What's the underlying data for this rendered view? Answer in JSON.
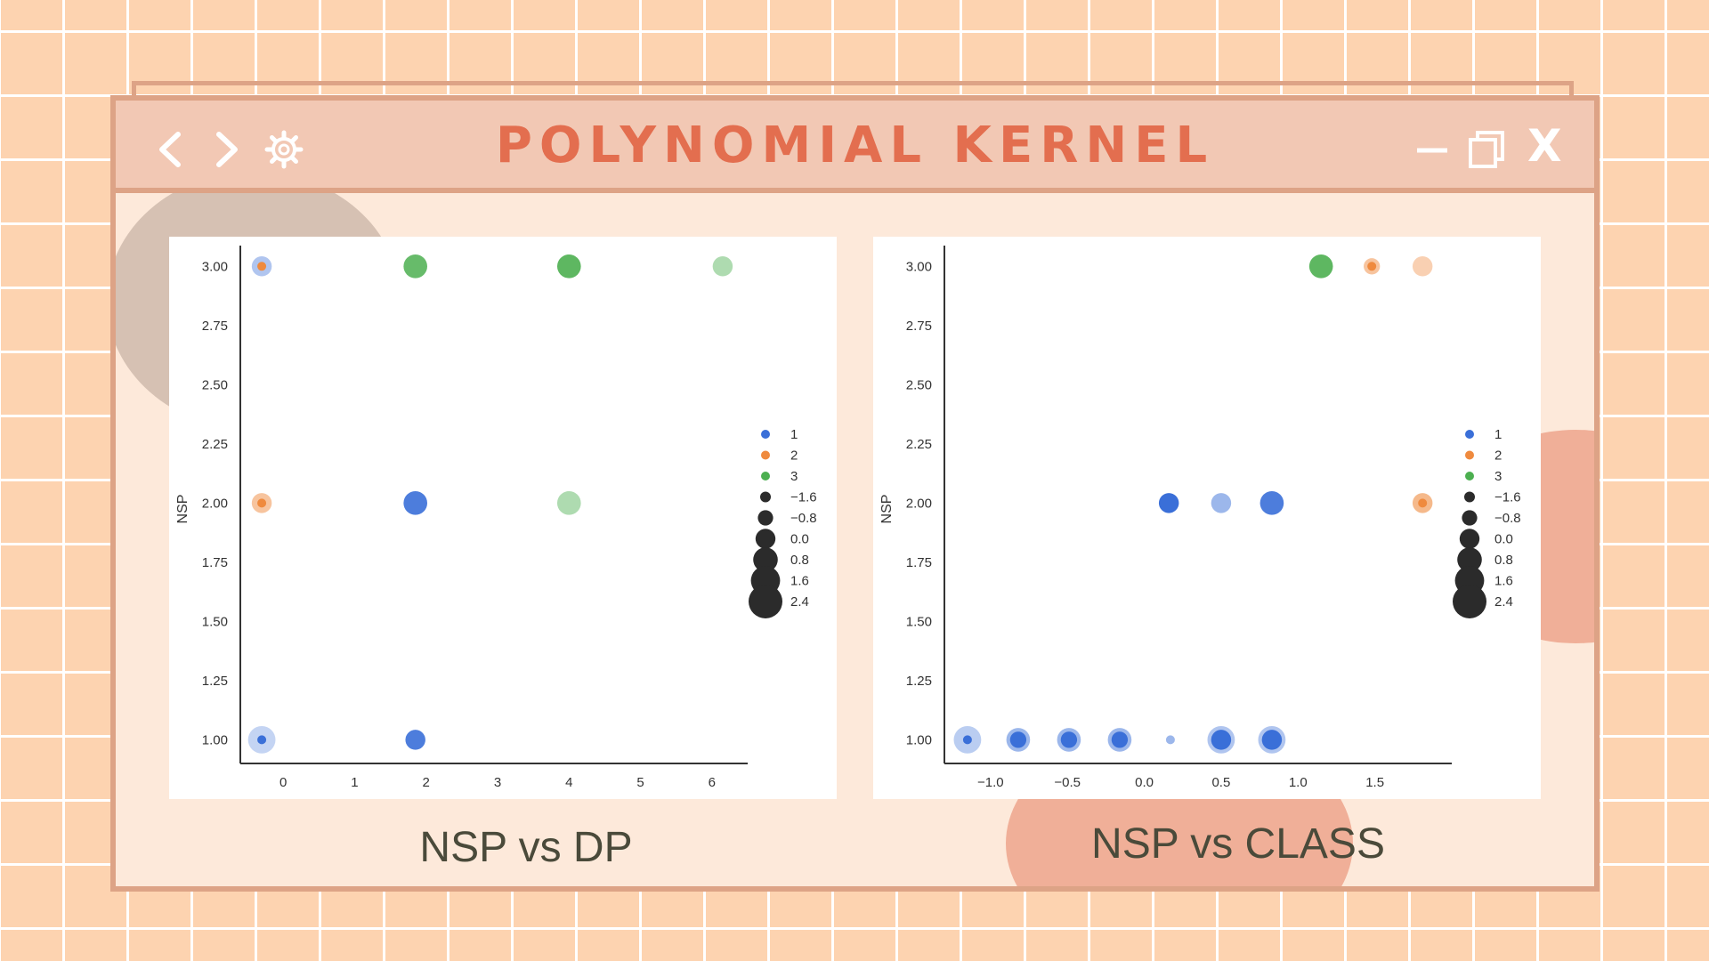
{
  "window": {
    "title": "POLYNOMIAL KERNEL",
    "controls": [
      "back-icon",
      "forward-icon",
      "settings-icon",
      "minimize-icon",
      "maximize-icon",
      "close-icon"
    ],
    "close_label": "X"
  },
  "colors": {
    "class_1": "#3a6fd8",
    "class_2": "#ef8a3e",
    "class_3": "#4caf50",
    "window_border": "#dda386",
    "title": "#e36e4f"
  },
  "captions": {
    "left": "NSP vs DP",
    "right": "NSP vs CLASS"
  },
  "chart_data": [
    {
      "type": "scatter",
      "title": "",
      "xlabel": "",
      "ylabel": "NSP",
      "xlim": [
        -0.6,
        6.5
      ],
      "ylim": [
        0.9,
        3.05
      ],
      "xticks": [
        "0",
        "1",
        "2",
        "3",
        "4",
        "5",
        "6"
      ],
      "yticks": [
        "1.00",
        "1.25",
        "1.50",
        "1.75",
        "2.00",
        "2.25",
        "2.50",
        "2.75",
        "3.00"
      ],
      "legend_position": "right",
      "legend_hue": [
        "1",
        "2",
        "3"
      ],
      "legend_size": [
        "−1.6",
        "−0.8",
        "0.0",
        "0.8",
        "1.6",
        "2.4"
      ],
      "points": [
        {
          "x": -0.3,
          "y": 3.0,
          "hue": 2,
          "size": -1.6,
          "alpha": 1.0
        },
        {
          "x": -0.3,
          "y": 3.0,
          "hue": 1,
          "size": 0.8,
          "alpha": 0.4
        },
        {
          "x": 1.85,
          "y": 3.0,
          "hue": 3,
          "size": 1.6,
          "alpha": 0.85
        },
        {
          "x": 4.0,
          "y": 3.0,
          "hue": 3,
          "size": 1.6,
          "alpha": 0.9
        },
        {
          "x": 6.15,
          "y": 3.0,
          "hue": 3,
          "size": 0.8,
          "alpha": 0.45
        },
        {
          "x": -0.3,
          "y": 2.0,
          "hue": 2,
          "size": -1.6,
          "alpha": 1.0
        },
        {
          "x": -0.3,
          "y": 2.0,
          "hue": 2,
          "size": 0.8,
          "alpha": 0.5
        },
        {
          "x": 1.85,
          "y": 2.0,
          "hue": 1,
          "size": 1.6,
          "alpha": 0.9
        },
        {
          "x": 4.0,
          "y": 2.0,
          "hue": 3,
          "size": 1.6,
          "alpha": 0.45
        },
        {
          "x": -0.3,
          "y": 1.0,
          "hue": 1,
          "size": -1.6,
          "alpha": 1.0
        },
        {
          "x": -0.3,
          "y": 1.0,
          "hue": 1,
          "size": 2.4,
          "alpha": 0.3
        },
        {
          "x": 1.85,
          "y": 1.0,
          "hue": 1,
          "size": 0.8,
          "alpha": 0.9
        }
      ]
    },
    {
      "type": "scatter",
      "title": "",
      "xlabel": "",
      "ylabel": "NSP",
      "xlim": [
        -1.3,
        2.0
      ],
      "ylim": [
        0.9,
        3.05
      ],
      "xticks": [
        "−1.0",
        "−0.5",
        "0.0",
        "0.5",
        "1.0",
        "1.5"
      ],
      "yticks": [
        "1.00",
        "1.25",
        "1.50",
        "1.75",
        "2.00",
        "2.25",
        "2.50",
        "2.75",
        "3.00"
      ],
      "legend_position": "right",
      "legend_hue": [
        "1",
        "2",
        "3"
      ],
      "legend_size": [
        "−1.6",
        "−0.8",
        "0.0",
        "0.8",
        "1.6",
        "2.4"
      ],
      "points": [
        {
          "x": 1.15,
          "y": 3.0,
          "hue": 3,
          "size": 1.6,
          "alpha": 0.9
        },
        {
          "x": 1.48,
          "y": 3.0,
          "hue": 2,
          "size": -1.6,
          "alpha": 1.0
        },
        {
          "x": 1.48,
          "y": 3.0,
          "hue": 2,
          "size": 0.0,
          "alpha": 0.5
        },
        {
          "x": 1.81,
          "y": 3.0,
          "hue": 2,
          "size": 0.8,
          "alpha": 0.4
        },
        {
          "x": 0.16,
          "y": 2.0,
          "hue": 1,
          "size": 0.8,
          "alpha": 1.0
        },
        {
          "x": 0.5,
          "y": 2.0,
          "hue": 1,
          "size": 0.8,
          "alpha": 0.5
        },
        {
          "x": 0.83,
          "y": 2.0,
          "hue": 1,
          "size": 1.6,
          "alpha": 0.9
        },
        {
          "x": 1.81,
          "y": 2.0,
          "hue": 2,
          "size": -1.6,
          "alpha": 1.0
        },
        {
          "x": 1.81,
          "y": 2.0,
          "hue": 2,
          "size": 0.8,
          "alpha": 0.6
        },
        {
          "x": -1.15,
          "y": 1.0,
          "hue": 1,
          "size": -1.6,
          "alpha": 1.0
        },
        {
          "x": -1.15,
          "y": 1.0,
          "hue": 1,
          "size": 2.4,
          "alpha": 0.35
        },
        {
          "x": -0.82,
          "y": 1.0,
          "hue": 1,
          "size": 0.0,
          "alpha": 1.0
        },
        {
          "x": -0.82,
          "y": 1.0,
          "hue": 1,
          "size": 1.6,
          "alpha": 0.5
        },
        {
          "x": -0.49,
          "y": 1.0,
          "hue": 1,
          "size": 0.0,
          "alpha": 1.0
        },
        {
          "x": -0.49,
          "y": 1.0,
          "hue": 1,
          "size": 1.6,
          "alpha": 0.5
        },
        {
          "x": -0.16,
          "y": 1.0,
          "hue": 1,
          "size": 0.0,
          "alpha": 1.0
        },
        {
          "x": -0.16,
          "y": 1.0,
          "hue": 1,
          "size": 1.6,
          "alpha": 0.5
        },
        {
          "x": 0.17,
          "y": 1.0,
          "hue": 1,
          "size": -1.6,
          "alpha": 0.5
        },
        {
          "x": 0.5,
          "y": 1.0,
          "hue": 1,
          "size": 0.8,
          "alpha": 1.0
        },
        {
          "x": 0.5,
          "y": 1.0,
          "hue": 1,
          "size": 2.4,
          "alpha": 0.4
        },
        {
          "x": 0.83,
          "y": 1.0,
          "hue": 1,
          "size": 0.8,
          "alpha": 1.0
        },
        {
          "x": 0.83,
          "y": 1.0,
          "hue": 1,
          "size": 2.4,
          "alpha": 0.4
        }
      ]
    }
  ]
}
